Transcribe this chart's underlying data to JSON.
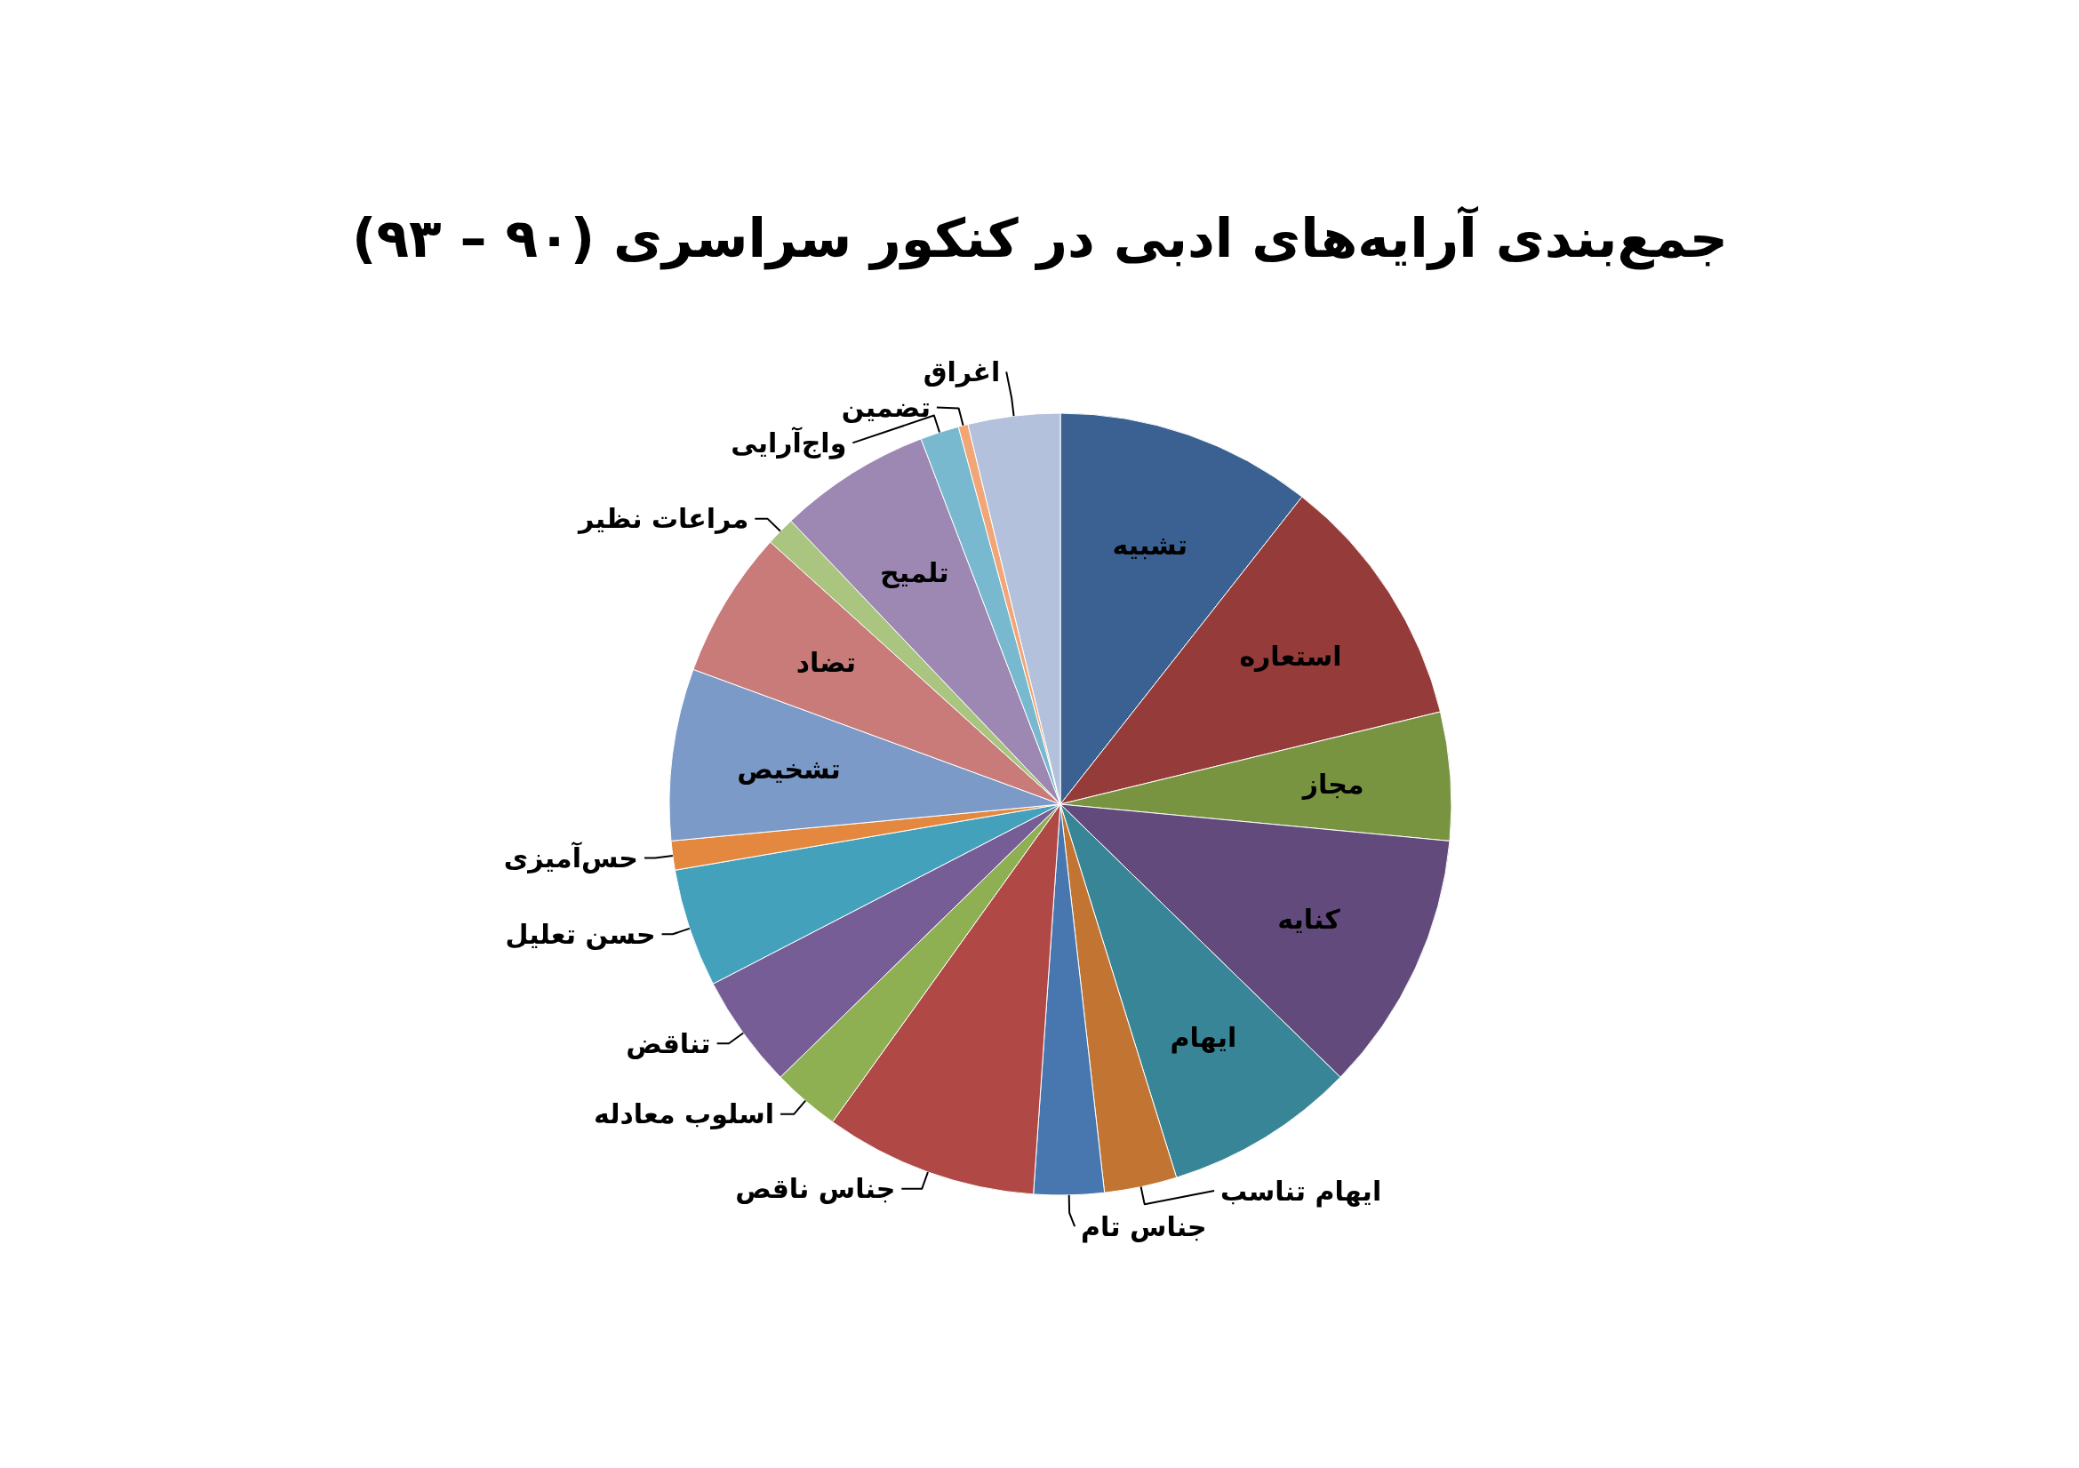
{
  "chart_data": {
    "type": "pie",
    "title": "جمع‌بندی آرایه‌های ادبی در کنکور سراسری (۹۰ – ۹۳)",
    "categories": [
      "تشبیه",
      "استعاره",
      "مجاز",
      "کنایه",
      "ایهام",
      "ایهام تناسب",
      "جناس تام",
      "جناس ناقص",
      "اسلوب معادله",
      "تناقض",
      "حسن تعلیل",
      "حس‌آمیزی",
      "تشخیص",
      "تضاد",
      "مراعات نظیر",
      "تلمیح",
      "واج‌آرایی",
      "تضمین",
      "اغراق"
    ],
    "values": [
      10.6,
      10.6,
      5.3,
      10.8,
      7.9,
      3.0,
      2.9,
      8.8,
      2.8,
      4.7,
      4.9,
      1.2,
      7.1,
      6.1,
      1.2,
      6.3,
      1.6,
      0.4,
      3.8
    ],
    "colors": [
      "#3a6191",
      "#953b39",
      "#789440",
      "#624b7c",
      "#388597",
      "#c27533",
      "#4877b0",
      "#b04946",
      "#8fb052",
      "#775d96",
      "#44a1bc",
      "#e4883f",
      "#7c9ac8",
      "#c87b79",
      "#a9c57f",
      "#9c88b3",
      "#78b9cf",
      "#f2a677",
      "#b3c1dd"
    ]
  }
}
